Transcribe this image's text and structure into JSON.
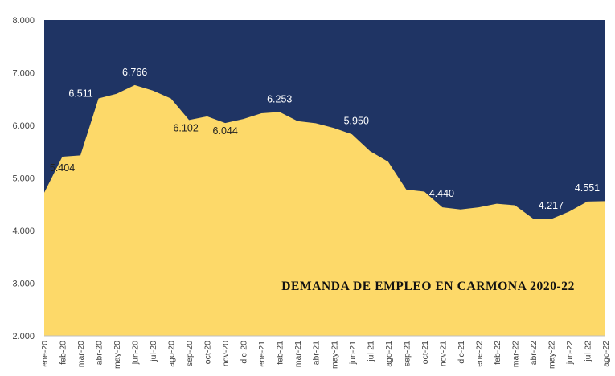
{
  "chart_data": {
    "type": "area",
    "title": "DEMANDA DE EMPLEO EN CARMONA 2020-22",
    "xlabel": "",
    "ylabel": "",
    "ylim": [
      2000,
      8000
    ],
    "yticks": [
      2000,
      3000,
      4000,
      5000,
      6000,
      7000,
      8000
    ],
    "ytick_labels": [
      "2.000",
      "3.000",
      "4.000",
      "5.000",
      "6.000",
      "7.000",
      "8.000"
    ],
    "grid": false,
    "legend": "none",
    "categories": [
      "ene-20",
      "feb-20",
      "mar-20",
      "abr-20",
      "may-20",
      "jun-20",
      "jul-20",
      "ago-20",
      "sep-20",
      "oct-20",
      "nov-20",
      "dic-20",
      "ene-21",
      "feb-21",
      "mar-21",
      "abr-21",
      "may-21",
      "jun-21",
      "jul-21",
      "ago-21",
      "sep-21",
      "oct-21",
      "nov-21",
      "dic-21",
      "ene-22",
      "feb-22",
      "mar-22",
      "abr-22",
      "may-22",
      "jun-22",
      "jul-22",
      "ago-22"
    ],
    "values": [
      4720,
      5404,
      5430,
      6511,
      6600,
      6766,
      6660,
      6510,
      6102,
      6170,
      6044,
      6120,
      6230,
      6253,
      6080,
      6040,
      5950,
      5830,
      5510,
      5310,
      4780,
      4740,
      4440,
      4400,
      4440,
      4510,
      4480,
      4230,
      4217,
      4360,
      4551,
      4560
    ],
    "data_labels": [
      {
        "index": 1,
        "text": "5.404",
        "color": "#222222"
      },
      {
        "index": 3,
        "text": "6.511",
        "color": "#ffffff"
      },
      {
        "index": 5,
        "text": "6.766",
        "color": "#ffffff"
      },
      {
        "index": 8,
        "text": "6.102",
        "color": "#222222"
      },
      {
        "index": 10,
        "text": "6.044",
        "color": "#222222"
      },
      {
        "index": 13,
        "text": "6.253",
        "color": "#ffffff"
      },
      {
        "index": 16,
        "text": "5.950",
        "color": "#ffffff"
      },
      {
        "index": 22,
        "text": "4.440",
        "color": "#ffffff"
      },
      {
        "index": 28,
        "text": "4.217",
        "color": "#ffffff"
      },
      {
        "index": 30,
        "text": "4.551",
        "color": "#ffffff"
      }
    ],
    "colors": {
      "area": "#fdd969",
      "background": "#1f3464",
      "axis_text": "#404040",
      "title": "#111111"
    }
  }
}
